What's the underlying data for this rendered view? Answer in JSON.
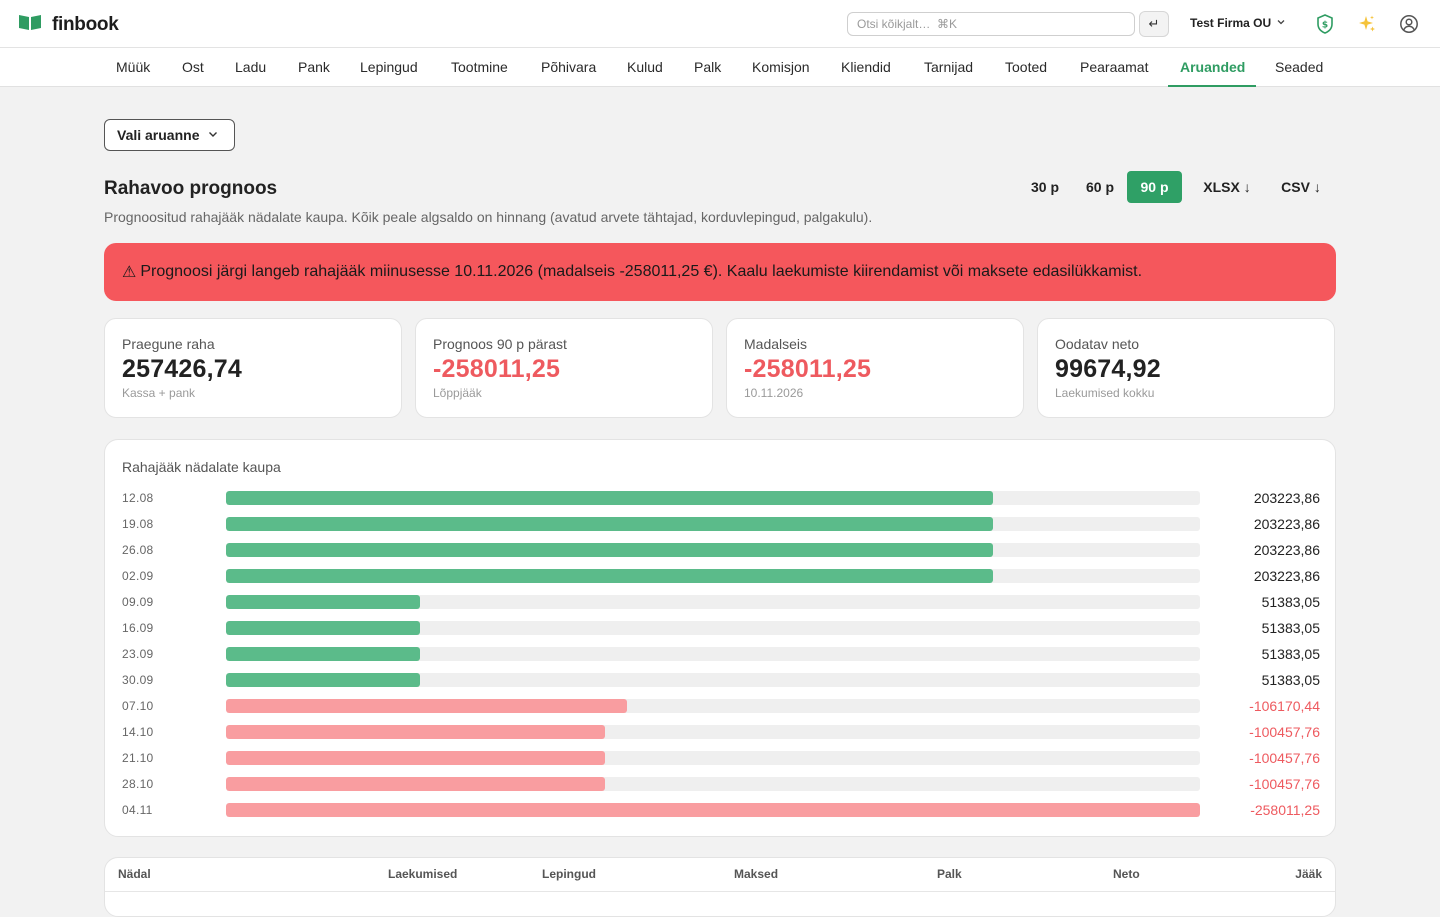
{
  "app": {
    "name": "finbook"
  },
  "search": {
    "placeholder": "Otsi kõikjalt…  ⌘K",
    "enter_glyph": "↵"
  },
  "company": {
    "name": "Test Firma OU"
  },
  "nav": [
    {
      "label": "Müük"
    },
    {
      "label": "Ost"
    },
    {
      "label": "Ladu"
    },
    {
      "label": "Pank"
    },
    {
      "label": "Lepingud"
    },
    {
      "label": "Tootmine"
    },
    {
      "label": "Põhivara"
    },
    {
      "label": "Kulud"
    },
    {
      "label": "Palk"
    },
    {
      "label": "Komisjon"
    },
    {
      "label": "Kliendid"
    },
    {
      "label": "Tarnijad"
    },
    {
      "label": "Tooted"
    },
    {
      "label": "Pearaamat"
    },
    {
      "label": "Aruanded",
      "active": true
    },
    {
      "label": "Seaded"
    }
  ],
  "report_select": {
    "label": "Vali aruanne"
  },
  "page": {
    "title": "Rahavoo prognoos",
    "subtitle": "Prognoositud rahajääk nädalate kaupa. Kõik peale algsaldo on hinnang (avatud arvete tähtajad, korduvlepingud, palgakulu)."
  },
  "periods": [
    {
      "label": "30 p"
    },
    {
      "label": "60 p"
    },
    {
      "label": "90 p",
      "active": true
    }
  ],
  "exports": [
    {
      "label": "XLSX ↓"
    },
    {
      "label": "CSV ↓"
    }
  ],
  "alert": {
    "icon": "⚠",
    "text": "Prognoosi järgi langeb rahajääk miinusesse 10.11.2026 (madalseis -258011,25 €). Kaalu laekumiste kiirendamist või maksete edasilükkamist."
  },
  "cards": [
    {
      "label": "Praegune raha",
      "value": "257426,74",
      "sub": "Kassa + pank",
      "negative": false
    },
    {
      "label": "Prognoos 90 p pärast",
      "value": "-258011,25",
      "sub": "Lõppjääk",
      "negative": true
    },
    {
      "label": "Madalseis",
      "value": "-258011,25",
      "sub": "10.11.2026",
      "negative": true
    },
    {
      "label": "Oodatav neto",
      "value": "99674,92",
      "sub": "Laekumised kokku",
      "negative": false
    }
  ],
  "chart_data": {
    "type": "bar",
    "title": "Rahajääk nädalate kaupa",
    "orientation": "horizontal",
    "categories": [
      "12.08",
      "19.08",
      "26.08",
      "02.09",
      "09.09",
      "16.09",
      "23.09",
      "30.09",
      "07.10",
      "14.10",
      "21.10",
      "28.10",
      "04.11"
    ],
    "values": [
      203223.86,
      203223.86,
      203223.86,
      203223.86,
      51383.05,
      51383.05,
      51383.05,
      51383.05,
      -106170.44,
      -100457.76,
      -100457.76,
      -100457.76,
      -258011.25
    ],
    "value_labels": [
      "203223,86",
      "203223,86",
      "203223,86",
      "203223,86",
      "51383,05",
      "51383,05",
      "51383,05",
      "51383,05",
      "-106170,44",
      "-100457,76",
      "-100457,76",
      "-100457,76",
      "-258011,25"
    ],
    "scale": "magnitude relative to max |value|",
    "colors": {
      "positive": "#5bbb8a",
      "negative": "#f99da0",
      "track": "#efefef"
    }
  },
  "table": {
    "headers": [
      "Nädal",
      "Laekumised",
      "Lepingud",
      "Maksed",
      "Palk",
      "Neto",
      "Jääk"
    ]
  },
  "colors": {
    "accent": "#2f9c62",
    "alert": "#f5575c",
    "negative_text": "#ee5a5f"
  }
}
